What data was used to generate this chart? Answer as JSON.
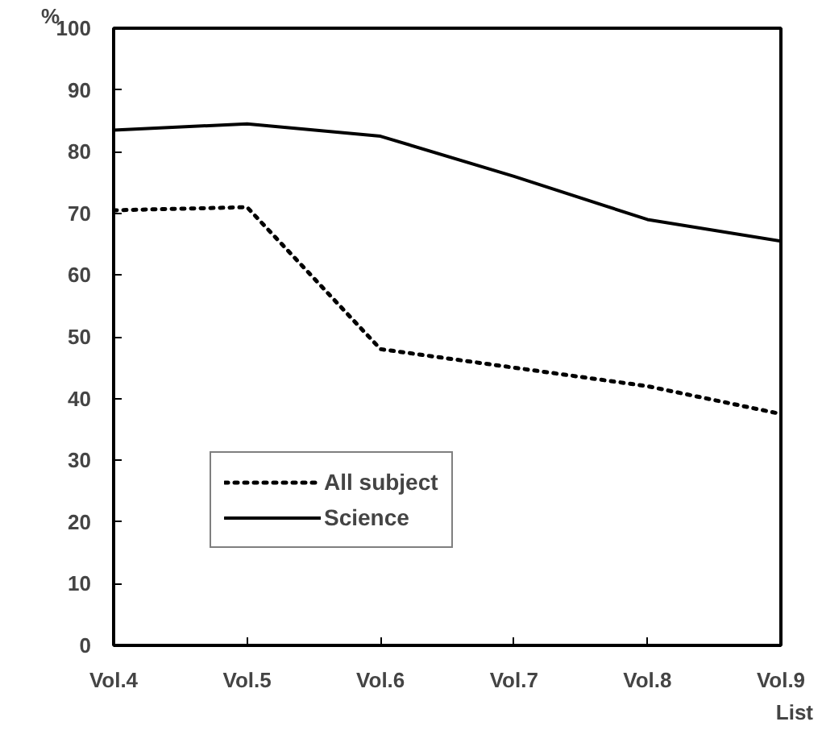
{
  "chart_data": {
    "type": "line",
    "xlabel": "List",
    "ylabel": "%",
    "categories": [
      "Vol.4",
      "Vol.5",
      "Vol.6",
      "Vol.7",
      "Vol.8",
      "Vol.9"
    ],
    "series": [
      {
        "name": "All subject",
        "color": "#000000",
        "line_style": "dotted",
        "values": [
          70.5,
          71,
          48,
          45,
          42,
          37.5
        ]
      },
      {
        "name": "Science",
        "color": "#000000",
        "line_style": "solid",
        "values": [
          83.5,
          84.5,
          82.5,
          76,
          69,
          65.5
        ]
      }
    ],
    "ylim": [
      0,
      100
    ],
    "yticks": [
      0,
      10,
      20,
      30,
      40,
      50,
      60,
      70,
      80,
      90,
      100
    ],
    "grid": false,
    "legend": "bottom left",
    "marker": "none"
  }
}
